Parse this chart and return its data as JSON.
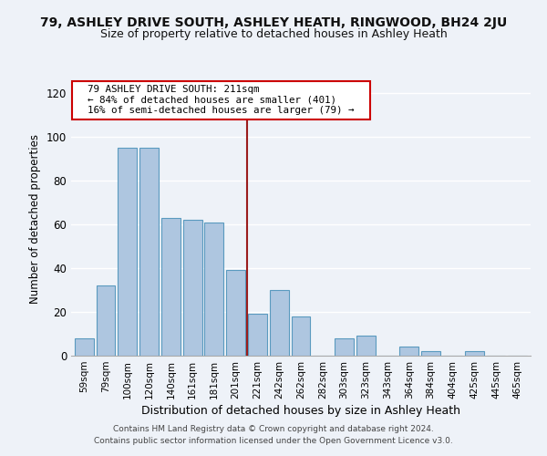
{
  "title": "79, ASHLEY DRIVE SOUTH, ASHLEY HEATH, RINGWOOD, BH24 2JU",
  "subtitle": "Size of property relative to detached houses in Ashley Heath",
  "xlabel": "Distribution of detached houses by size in Ashley Heath",
  "ylabel": "Number of detached properties",
  "bar_labels": [
    "59sqm",
    "79sqm",
    "100sqm",
    "120sqm",
    "140sqm",
    "161sqm",
    "181sqm",
    "201sqm",
    "221sqm",
    "242sqm",
    "262sqm",
    "282sqm",
    "303sqm",
    "323sqm",
    "343sqm",
    "364sqm",
    "384sqm",
    "404sqm",
    "425sqm",
    "445sqm",
    "465sqm"
  ],
  "bar_values": [
    8,
    32,
    95,
    95,
    63,
    62,
    61,
    39,
    19,
    30,
    18,
    0,
    8,
    9,
    0,
    4,
    2,
    0,
    2,
    0,
    0
  ],
  "bar_color": "#aec6e0",
  "bar_edge_color": "#5a9abf",
  "annotation_line1": "79 ASHLEY DRIVE SOUTH: 211sqm",
  "annotation_line2": "← 84% of detached houses are smaller (401)",
  "annotation_line3": "16% of semi-detached houses are larger (79) →",
  "annotation_box_color": "#ffffff",
  "annotation_box_edge_color": "#cc0000",
  "vline_color": "#9b1c1c",
  "ylim": [
    0,
    125
  ],
  "yticks": [
    0,
    20,
    40,
    60,
    80,
    100,
    120
  ],
  "background_color": "#eef2f8",
  "grid_color": "#ffffff",
  "footer_line1": "Contains HM Land Registry data © Crown copyright and database right 2024.",
  "footer_line2": "Contains public sector information licensed under the Open Government Licence v3.0."
}
